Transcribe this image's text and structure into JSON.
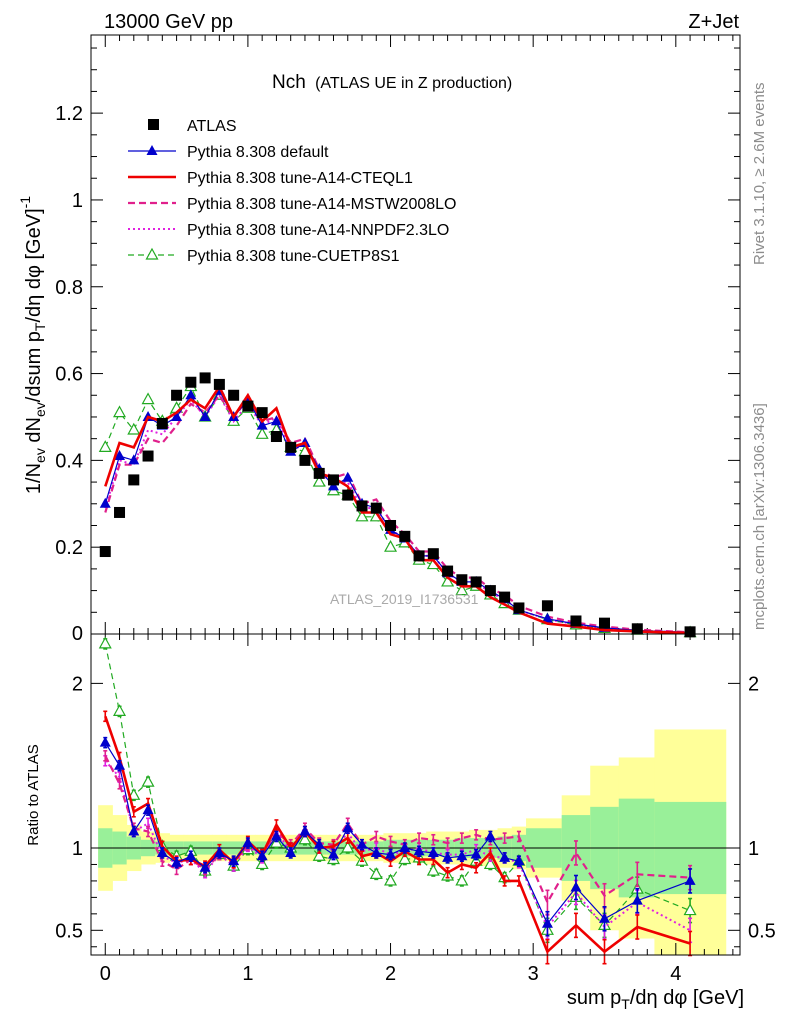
{
  "header": {
    "left": "13000 GeV pp",
    "right": "Z+Jet"
  },
  "side_labels": {
    "rivet": "Rivet 3.1.10, ≥ 2.6M events",
    "mcplots": "mcplots.cern.ch [arXiv:1306.3436]"
  },
  "watermark": "ATLAS_2019_I1736531",
  "chart_data": [
    {
      "type": "scatter",
      "panel": "main",
      "title": "Nch",
      "subtitle": "(ATLAS UE in Z production)",
      "ylabel": "1/N_ev dN_ev/dsum p_T/dη dφ [GeV]^-1",
      "xlabel": "sum p_T/dη dφ [GeV]",
      "xlim": [
        -0.1,
        4.45
      ],
      "ylim": [
        0,
        1.38
      ],
      "xticks": [
        0,
        1,
        2,
        3,
        4
      ],
      "yticks": [
        0.2,
        0.4,
        0.6,
        0.8,
        1,
        1.2
      ],
      "ytick_labels": [
        "0.2",
        "0.4",
        "0.6",
        "0.8",
        "1",
        "1.2"
      ],
      "zero_label": "0",
      "legend_position": "top-left",
      "x": [
        0,
        0.1,
        0.2,
        0.3,
        0.4,
        0.5,
        0.6,
        0.7,
        0.8,
        0.9,
        1.0,
        1.1,
        1.2,
        1.3,
        1.4,
        1.5,
        1.6,
        1.7,
        1.8,
        1.9,
        2.0,
        2.1,
        2.2,
        2.3,
        2.4,
        2.5,
        2.6,
        2.7,
        2.8,
        2.9,
        3.1,
        3.3,
        3.5,
        3.73,
        4.1
      ],
      "series": [
        {
          "name": "ATLAS",
          "style": "data",
          "color": "#000000",
          "values": [
            0.19,
            0.28,
            0.355,
            0.41,
            0.485,
            0.55,
            0.58,
            0.59,
            0.575,
            0.55,
            0.525,
            0.51,
            0.455,
            0.43,
            0.4,
            0.37,
            0.355,
            0.32,
            0.295,
            0.29,
            0.25,
            0.225,
            0.18,
            0.185,
            0.145,
            0.125,
            0.12,
            0.1,
            0.085,
            0.06,
            0.065,
            0.03,
            0.025,
            0.012,
            0.005
          ]
        },
        {
          "name": "Pythia 8.308 default",
          "style": "solid-triangle",
          "color": "#0000cc",
          "values": [
            0.3,
            0.41,
            0.4,
            0.5,
            0.48,
            0.5,
            0.55,
            0.5,
            0.56,
            0.5,
            0.54,
            0.48,
            0.49,
            0.42,
            0.44,
            0.38,
            0.34,
            0.36,
            0.3,
            0.29,
            0.24,
            0.22,
            0.18,
            0.18,
            0.14,
            0.12,
            0.12,
            0.1,
            0.08,
            0.055,
            0.035,
            0.023,
            0.014,
            0.008,
            0.004
          ]
        },
        {
          "name": "Pythia 8.308 tune-A14-CTEQL1",
          "style": "solid-thick",
          "color": "#ee0000",
          "values": [
            0.34,
            0.44,
            0.43,
            0.5,
            0.49,
            0.51,
            0.54,
            0.52,
            0.57,
            0.5,
            0.55,
            0.49,
            0.52,
            0.43,
            0.44,
            0.37,
            0.36,
            0.34,
            0.28,
            0.28,
            0.23,
            0.22,
            0.17,
            0.17,
            0.13,
            0.11,
            0.11,
            0.085,
            0.068,
            0.05,
            0.024,
            0.017,
            0.009,
            0.006,
            0.002
          ]
        },
        {
          "name": "Pythia 8.308 tune-A14-MSTW2008LO",
          "style": "dashed",
          "color": "#e0208c",
          "values": [
            0.28,
            0.39,
            0.39,
            0.45,
            0.44,
            0.48,
            0.53,
            0.51,
            0.55,
            0.5,
            0.54,
            0.49,
            0.5,
            0.44,
            0.45,
            0.38,
            0.36,
            0.37,
            0.3,
            0.31,
            0.26,
            0.23,
            0.19,
            0.19,
            0.15,
            0.13,
            0.13,
            0.105,
            0.09,
            0.065,
            0.04,
            0.026,
            0.017,
            0.01,
            0.004
          ]
        },
        {
          "name": "Pythia 8.308 tune-A14-NNPDF2.3LO",
          "style": "dotted",
          "color": "#e020e0",
          "values": [
            0.29,
            0.4,
            0.39,
            0.47,
            0.46,
            0.5,
            0.54,
            0.5,
            0.55,
            0.49,
            0.53,
            0.48,
            0.5,
            0.42,
            0.44,
            0.37,
            0.35,
            0.35,
            0.29,
            0.29,
            0.24,
            0.22,
            0.18,
            0.18,
            0.14,
            0.12,
            0.12,
            0.095,
            0.08,
            0.055,
            0.034,
            0.022,
            0.013,
            0.008,
            0.003
          ]
        },
        {
          "name": "Pythia 8.308 tune-CUETP8S1",
          "style": "dashed-open-triangle",
          "color": "#22aa22",
          "values": [
            0.43,
            0.51,
            0.47,
            0.54,
            0.49,
            0.52,
            0.57,
            0.5,
            0.55,
            0.49,
            0.52,
            0.46,
            0.47,
            0.43,
            0.42,
            0.35,
            0.33,
            0.32,
            0.27,
            0.27,
            0.2,
            0.21,
            0.17,
            0.16,
            0.12,
            0.1,
            0.11,
            0.09,
            0.07,
            0.055,
            0.033,
            0.021,
            0.013,
            0.009,
            0.003
          ]
        }
      ]
    },
    {
      "type": "line",
      "panel": "ratio",
      "ylabel": "Ratio to ATLAS",
      "xlabel": "sum p_T/dη dφ [GeV]",
      "xlim": [
        -0.1,
        4.45
      ],
      "ylim": [
        0.35,
        2.3
      ],
      "yticks": [
        0.5,
        1,
        2
      ],
      "ytick_labels": [
        "0.5",
        "1",
        "2"
      ],
      "xticks": [
        0,
        1,
        2,
        3,
        4
      ],
      "xtick_labels": [
        "0",
        "1",
        "2",
        "3",
        "4"
      ],
      "x": [
        0,
        0.1,
        0.2,
        0.3,
        0.4,
        0.5,
        0.6,
        0.7,
        0.8,
        0.9,
        1.0,
        1.1,
        1.2,
        1.3,
        1.4,
        1.5,
        1.6,
        1.7,
        1.8,
        1.9,
        2.0,
        2.1,
        2.2,
        2.3,
        2.4,
        2.5,
        2.6,
        2.7,
        2.8,
        2.9,
        3.1,
        3.3,
        3.5,
        3.73,
        4.1
      ],
      "bands": {
        "bin_edges": [
          -0.05,
          0.05,
          0.15,
          0.25,
          0.35,
          0.45,
          0.55,
          0.65,
          0.75,
          0.85,
          0.95,
          1.05,
          1.15,
          1.25,
          1.35,
          1.45,
          1.55,
          1.65,
          1.75,
          1.85,
          1.95,
          2.05,
          2.15,
          2.25,
          2.35,
          2.45,
          2.55,
          2.65,
          2.75,
          2.85,
          2.95,
          3.2,
          3.4,
          3.6,
          3.85,
          4.35
        ],
        "yellow_halfwidth": [
          0.26,
          0.2,
          0.14,
          0.1,
          0.09,
          0.08,
          0.08,
          0.08,
          0.08,
          0.08,
          0.08,
          0.08,
          0.08,
          0.08,
          0.08,
          0.08,
          0.08,
          0.08,
          0.08,
          0.08,
          0.09,
          0.09,
          0.09,
          0.1,
          0.1,
          0.1,
          0.11,
          0.11,
          0.12,
          0.13,
          0.18,
          0.32,
          0.5,
          0.55,
          0.72
        ],
        "green_halfwidth": [
          0.12,
          0.1,
          0.07,
          0.05,
          0.04,
          0.04,
          0.04,
          0.04,
          0.04,
          0.04,
          0.04,
          0.04,
          0.04,
          0.04,
          0.04,
          0.04,
          0.04,
          0.04,
          0.04,
          0.04,
          0.05,
          0.05,
          0.05,
          0.05,
          0.05,
          0.06,
          0.06,
          0.06,
          0.07,
          0.08,
          0.12,
          0.2,
          0.25,
          0.3,
          0.28
        ]
      },
      "series": [
        {
          "name": "Pythia 8.308 default",
          "color": "#0000cc",
          "values": [
            1.64,
            1.5,
            1.1,
            1.23,
            0.97,
            0.91,
            0.95,
            0.88,
            0.97,
            0.92,
            1.03,
            0.95,
            1.07,
            0.97,
            1.1,
            1.02,
            0.96,
            1.12,
            1.02,
            0.97,
            0.96,
            1.0,
            0.98,
            0.97,
            0.94,
            0.95,
            0.96,
            1.07,
            0.94,
            0.92,
            0.54,
            0.76,
            0.57,
            0.68,
            0.8
          ]
        },
        {
          "name": "Pythia 8.308 tune-A14-CTEQL1",
          "color": "#ee0000",
          "values": [
            1.8,
            1.55,
            1.22,
            1.27,
            1.01,
            0.92,
            0.93,
            0.89,
            0.99,
            0.91,
            1.04,
            0.96,
            1.14,
            1.0,
            1.1,
            1.0,
            1.01,
            1.06,
            0.95,
            0.97,
            0.92,
            0.98,
            0.93,
            0.93,
            0.85,
            0.9,
            0.88,
            0.97,
            0.8,
            0.8,
            0.37,
            0.53,
            0.37,
            0.52,
            0.42
          ]
        },
        {
          "name": "Pythia 8.308 tune-A14-MSTW2008LO",
          "color": "#e0208c",
          "values": [
            1.56,
            1.39,
            1.12,
            1.1,
            0.92,
            0.87,
            0.93,
            0.87,
            0.96,
            0.91,
            1.02,
            0.96,
            1.1,
            1.02,
            1.12,
            1.03,
            1.02,
            1.15,
            1.02,
            1.07,
            1.04,
            1.02,
            1.06,
            1.05,
            1.03,
            1.06,
            1.08,
            1.05,
            1.06,
            1.07,
            0.67,
            0.97,
            0.71,
            0.84,
            0.82
          ]
        },
        {
          "name": "Pythia 8.308 tune-A14-NNPDF2.3LO",
          "color": "#e020e0",
          "values": [
            1.53,
            1.43,
            1.1,
            1.15,
            0.95,
            0.91,
            0.93,
            0.85,
            0.96,
            0.89,
            1.01,
            0.94,
            1.1,
            0.98,
            1.1,
            1.0,
            0.99,
            1.09,
            0.98,
            1.0,
            0.96,
            0.98,
            1.0,
            0.97,
            0.96,
            0.96,
            0.99,
            0.95,
            0.94,
            0.91,
            0.52,
            0.73,
            0.52,
            0.67,
            0.5
          ]
        },
        {
          "name": "Pythia 8.308 tune-CUETP8S1",
          "color": "#22aa22",
          "values": [
            2.24,
            1.83,
            1.32,
            1.4,
            1.01,
            0.95,
            0.98,
            0.86,
            0.96,
            0.89,
            0.99,
            0.9,
            1.03,
            1.0,
            1.05,
            0.95,
            0.93,
            1.0,
            0.92,
            0.84,
            0.8,
            0.93,
            0.94,
            0.86,
            0.83,
            0.8,
            0.92,
            0.9,
            0.82,
            0.92,
            0.5,
            0.7,
            0.53,
            0.75,
            0.62
          ]
        }
      ]
    }
  ]
}
